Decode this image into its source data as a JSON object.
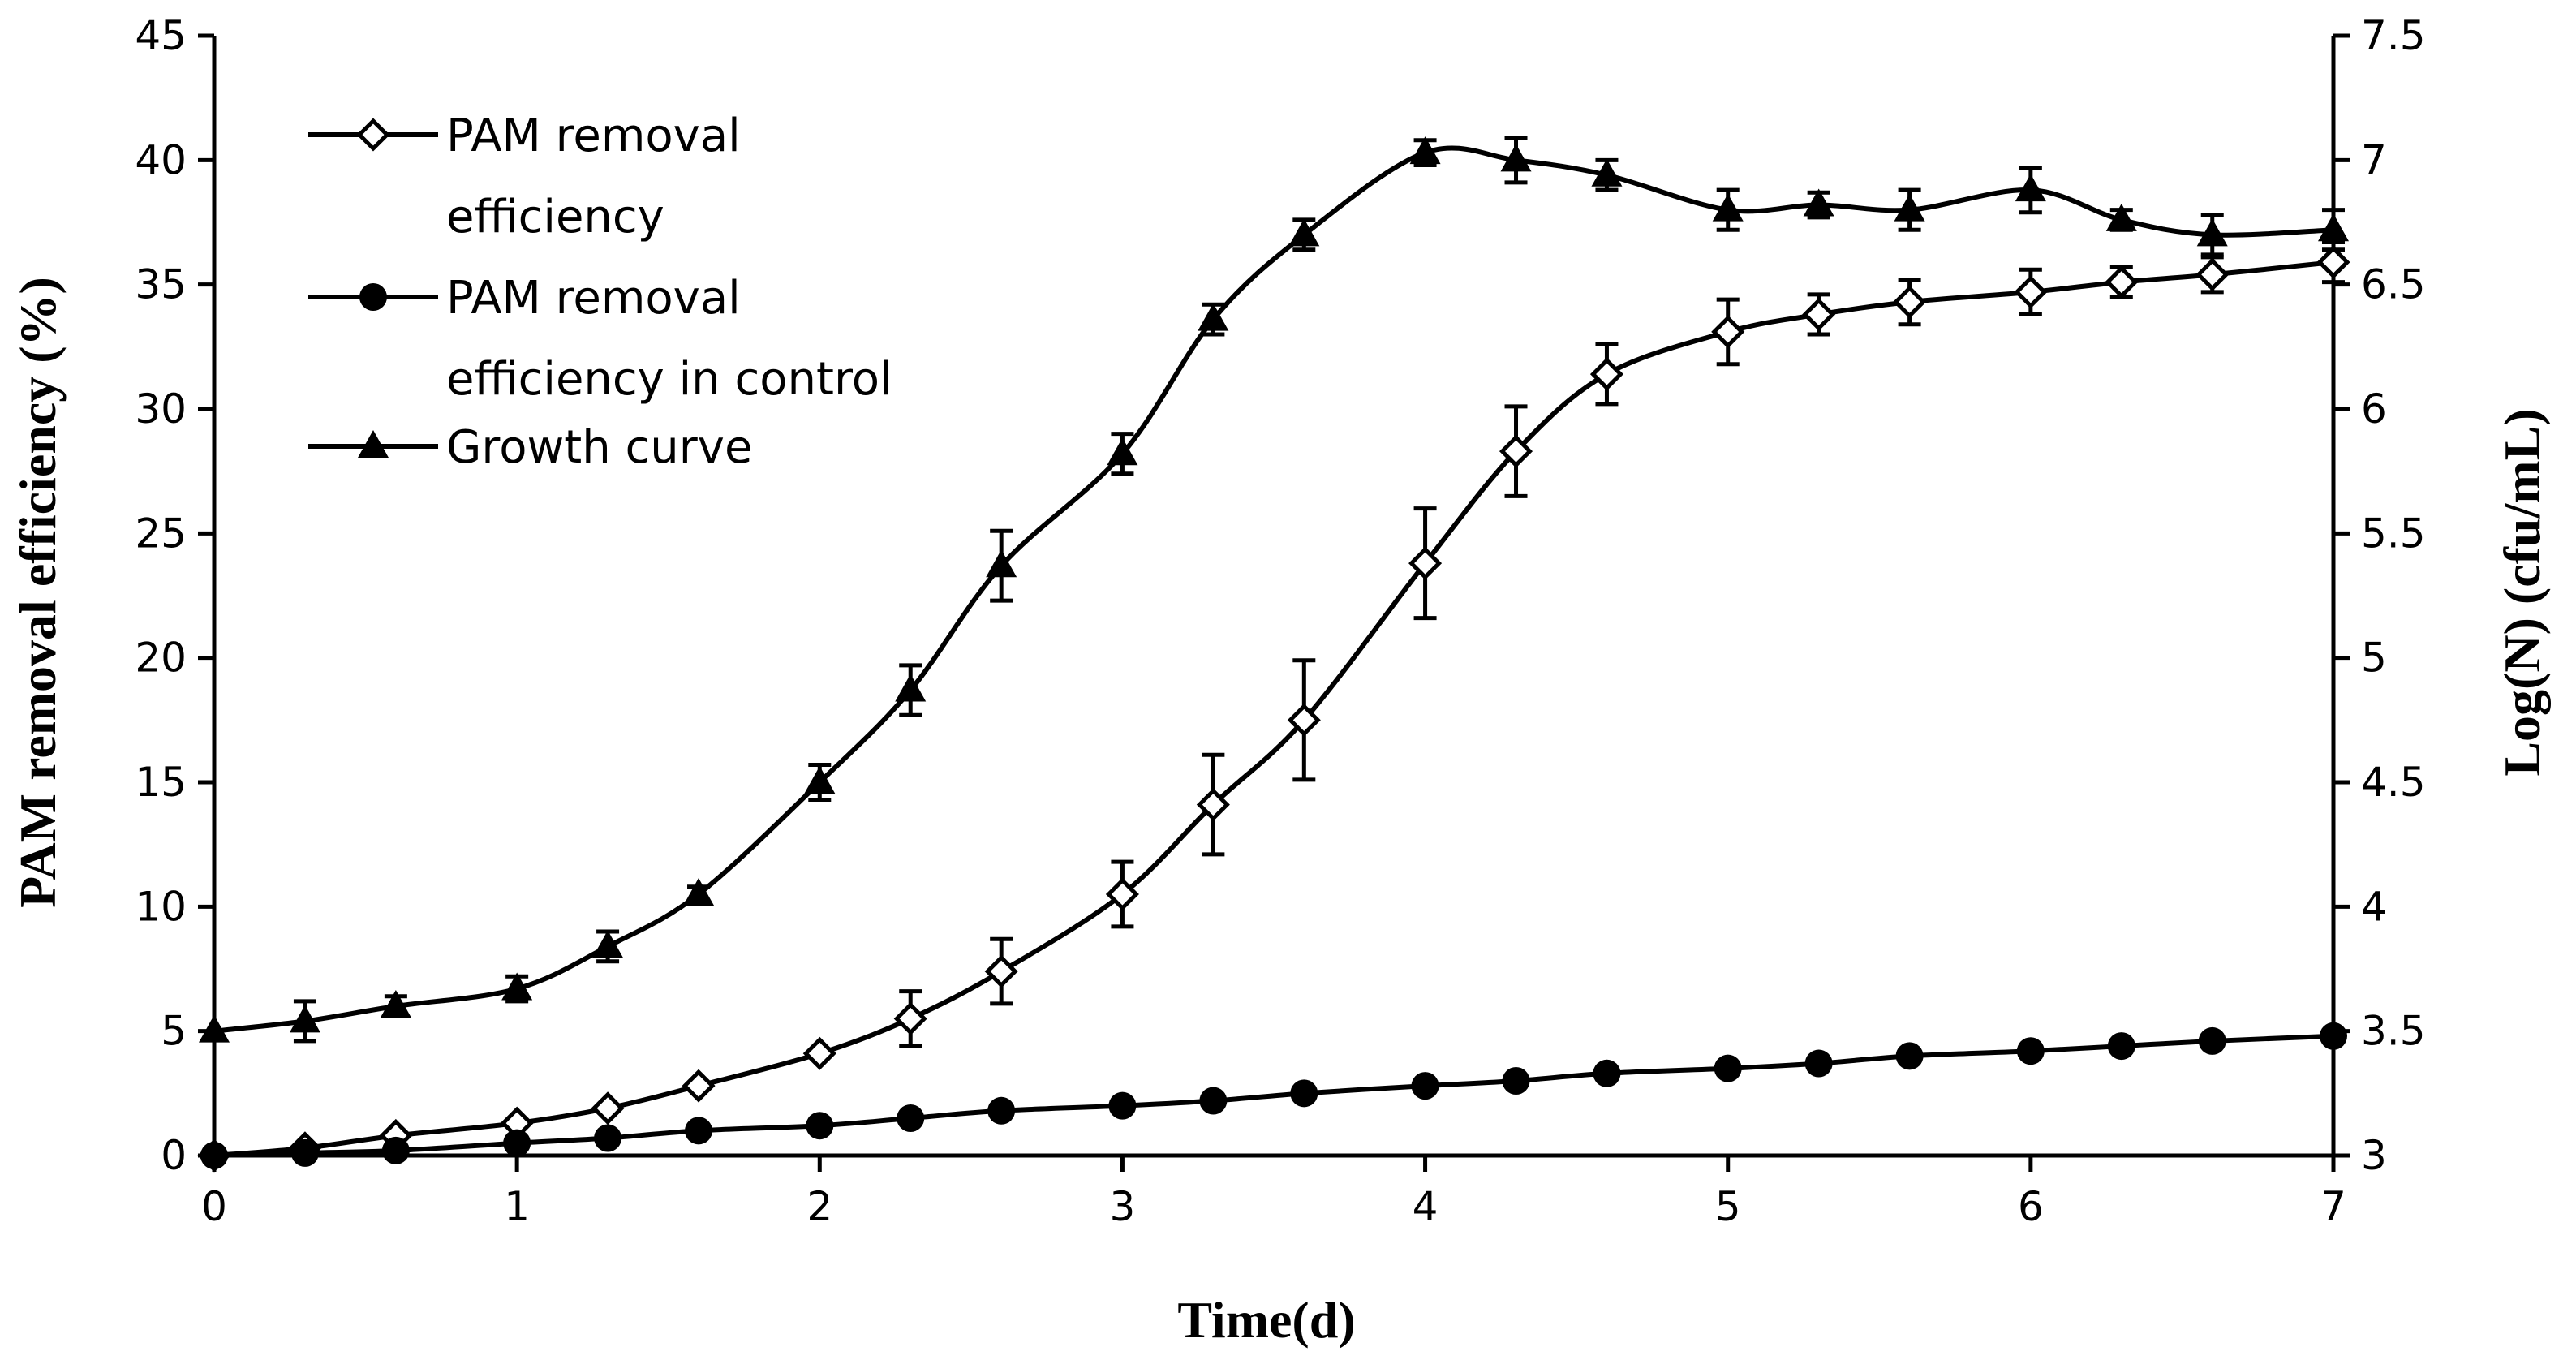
{
  "chart_data": {
    "type": "line",
    "title": "",
    "xlabel": "Time(d)",
    "ylabel": "PAM removal efficiency (%)",
    "y2label": "Log(N) (cfu/mL)",
    "xlim": [
      0,
      7
    ],
    "ylim": [
      0,
      45
    ],
    "y2lim": [
      3,
      7.5
    ],
    "xticks": [
      "0",
      "1",
      "2",
      "3",
      "4",
      "5",
      "6",
      "7"
    ],
    "yticks": [
      "0",
      "5",
      "10",
      "15",
      "20",
      "25",
      "30",
      "35",
      "40",
      "45"
    ],
    "y2ticks": [
      "3",
      "3.5",
      "4",
      "4.5",
      "5",
      "5.5",
      "6",
      "6.5",
      "7",
      "7.5"
    ],
    "grid": false,
    "legend_position": "top-left",
    "series": [
      {
        "name": "PAM removal efficiency",
        "legend_lines": [
          "PAM removal",
          "efficiency"
        ],
        "marker": "open-diamond",
        "axis": "left",
        "x": [
          0,
          0.3,
          0.6,
          1,
          1.3,
          1.6,
          2,
          2.3,
          2.6,
          3,
          3.3,
          3.6,
          4,
          4.3,
          4.6,
          5,
          5.3,
          5.6,
          6,
          6.3,
          6.6,
          7
        ],
        "values": [
          0,
          0.3,
          0.8,
          1.3,
          1.9,
          2.8,
          4.1,
          5.5,
          7.4,
          10.5,
          14.1,
          17.5,
          23.8,
          28.3,
          31.4,
          33.1,
          33.8,
          34.3,
          34.7,
          35.1,
          35.4,
          35.9
        ],
        "errors": [
          0,
          0,
          0,
          0,
          0,
          0,
          0,
          1.1,
          1.3,
          1.3,
          2.0,
          2.4,
          2.2,
          1.8,
          1.2,
          1.3,
          0.8,
          0.9,
          0.9,
          0.6,
          0.7,
          0.8
        ]
      },
      {
        "name": "PAM removal efficiency in control",
        "legend_lines": [
          "PAM removal",
          "efficiency in control"
        ],
        "marker": "filled-circle",
        "axis": "left",
        "x": [
          0,
          0.3,
          0.6,
          1,
          1.3,
          1.6,
          2,
          2.3,
          2.6,
          3,
          3.3,
          3.6,
          4,
          4.3,
          4.6,
          5,
          5.3,
          5.6,
          6,
          6.3,
          6.6,
          7
        ],
        "values": [
          0,
          0.1,
          0.2,
          0.5,
          0.7,
          1.0,
          1.2,
          1.5,
          1.8,
          2.0,
          2.2,
          2.5,
          2.8,
          3.0,
          3.3,
          3.5,
          3.7,
          4.0,
          4.2,
          4.4,
          4.6,
          4.8
        ],
        "errors": []
      },
      {
        "name": "Growth curve",
        "legend_lines": [
          "Growth curve"
        ],
        "marker": "filled-triangle",
        "axis": "right",
        "x": [
          0,
          0.3,
          0.6,
          1,
          1.3,
          1.6,
          2,
          2.3,
          2.6,
          3,
          3.3,
          3.6,
          4,
          4.3,
          4.6,
          5,
          5.3,
          5.6,
          6,
          6.3,
          6.6,
          7
        ],
        "values": [
          3.5,
          3.54,
          3.6,
          3.67,
          3.84,
          4.05,
          4.5,
          4.87,
          5.37,
          5.82,
          6.36,
          6.7,
          7.03,
          7.0,
          6.94,
          6.8,
          6.82,
          6.8,
          6.88,
          6.76,
          6.7,
          6.72
        ],
        "errors": [
          0,
          0.08,
          0.04,
          0.05,
          0.06,
          0.03,
          0.07,
          0.1,
          0.14,
          0.08,
          0.06,
          0.06,
          0.05,
          0.09,
          0.06,
          0.08,
          0.05,
          0.08,
          0.09,
          0.04,
          0.08,
          0.08
        ]
      }
    ]
  }
}
